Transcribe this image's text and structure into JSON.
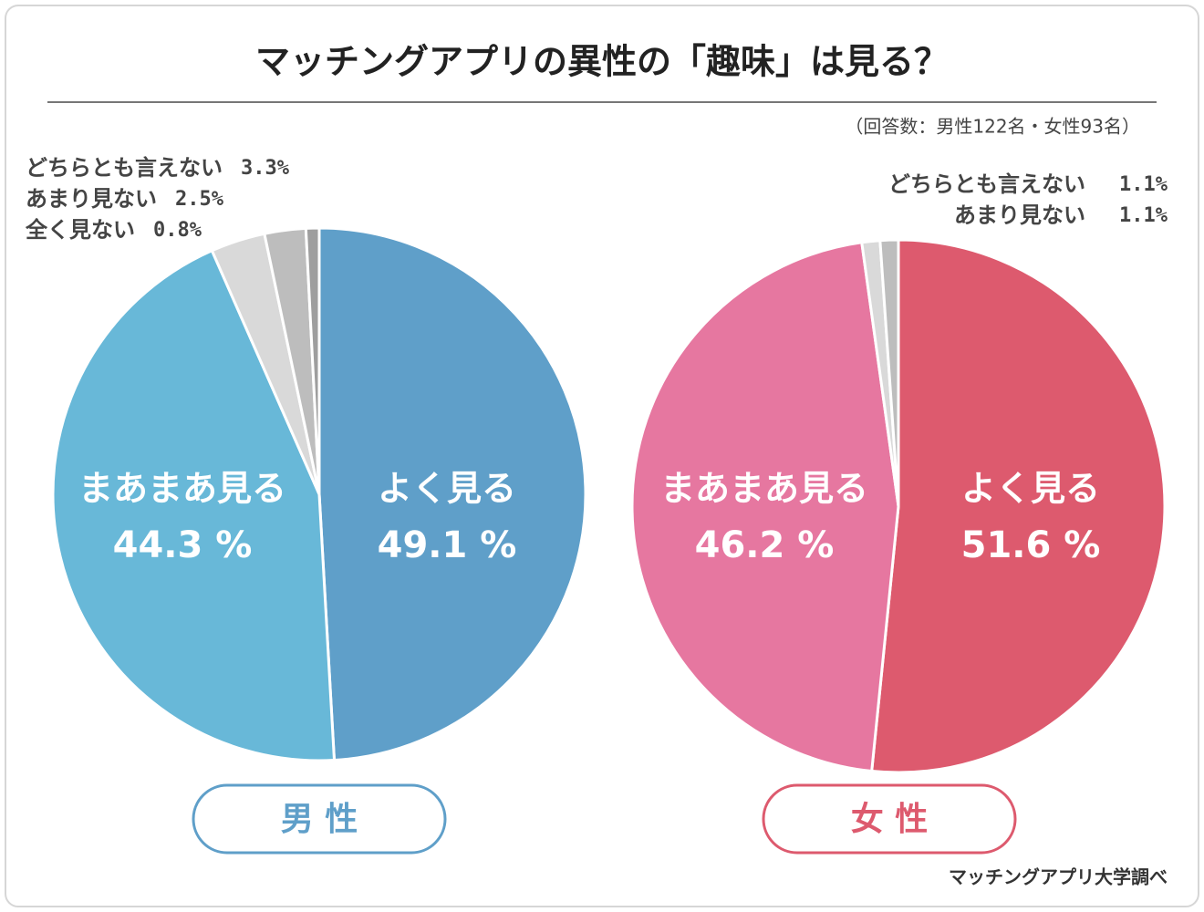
{
  "title": "マッチングアプリの異性の「趣味」は見る？",
  "subtitle": "（回答数：男性122名・女性93名）",
  "source": "マッチングアプリ大学調べ",
  "chart_data": [
    {
      "type": "pie",
      "title": "男 性",
      "color": "#5f9fc9",
      "categories": [
        "よく見る",
        "まあまあ見る",
        "どちらとも言えない",
        "あまり見ない",
        "全く見ない"
      ],
      "values": [
        49.1,
        44.3,
        3.3,
        2.5,
        0.8
      ],
      "value_labels": [
        "49.1 %",
        "44.3 %",
        "3.3%",
        "2.5%",
        "0.8%"
      ],
      "colors": [
        "#5f9fc9",
        "#68b8d8",
        "#d9d9d9",
        "#bdbdbd",
        "#9e9e9e"
      ]
    },
    {
      "type": "pie",
      "title": "女 性",
      "color": "#dd5a6e",
      "categories": [
        "よく見る",
        "まあまあ見る",
        "どちらとも言えない",
        "あまり見ない"
      ],
      "values": [
        51.6,
        46.2,
        1.1,
        1.1
      ],
      "value_labels": [
        "51.6 %",
        "46.2 %",
        "1.1%",
        "1.1%"
      ],
      "colors": [
        "#dd5a6e",
        "#e677a0",
        "#d9d9d9",
        "#bdbdbd"
      ]
    }
  ]
}
